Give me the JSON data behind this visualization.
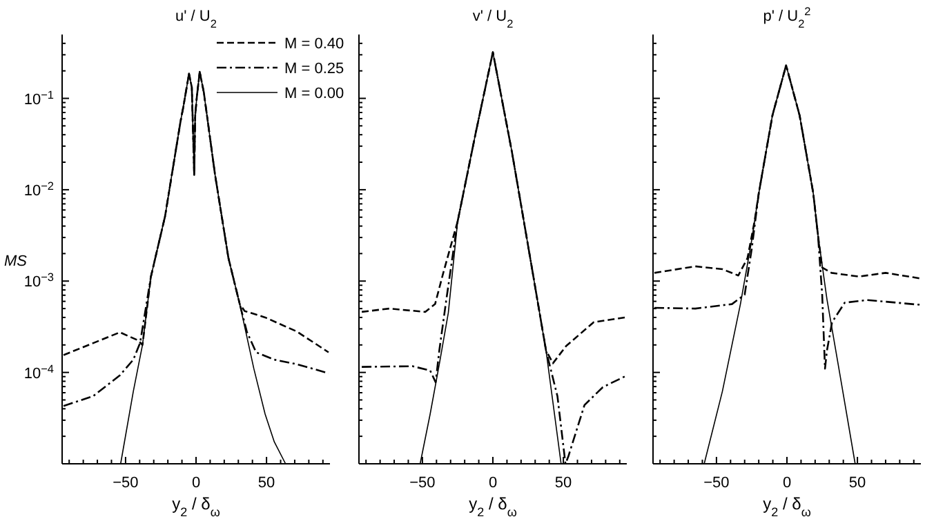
{
  "chart_data": [
    {
      "type": "line",
      "title": "u' / U$_{2}$",
      "xlabel": "y$_{2}$ / δ$_{ω}$",
      "ylabel": "MS",
      "log": "y",
      "legend": "top right",
      "xlim": [
        -95,
        95
      ],
      "ylim": [
        1e-05,
        0.5
      ],
      "xticks": [
        {
          "value": -90,
          "label": null
        },
        {
          "value": -80,
          "label": null
        },
        {
          "value": -70,
          "label": null
        },
        {
          "value": -60,
          "label": null
        },
        -50,
        {
          "value": -40,
          "label": null
        },
        {
          "value": -30,
          "label": null
        },
        {
          "value": -20,
          "label": null
        },
        {
          "value": -10,
          "label": null
        },
        0,
        {
          "value": 10,
          "label": null
        },
        {
          "value": 20,
          "label": null
        },
        {
          "value": 30,
          "label": null
        },
        {
          "value": 40,
          "label": null
        },
        50,
        {
          "value": 60,
          "label": null
        },
        {
          "value": 70,
          "label": null
        },
        {
          "value": 80,
          "label": null
        },
        {
          "value": 90,
          "label": null
        }
      ],
      "yticks": [
        {
          "value": 1e-05,
          "label": null
        },
        {
          "value": 2e-05,
          "label": null
        },
        {
          "value": 3e-05,
          "label": null
        },
        {
          "value": 4e-05,
          "label": null
        },
        {
          "value": 5e-05,
          "label": null
        },
        {
          "value": 6e-05,
          "label": null
        },
        {
          "value": 7e-05,
          "label": null
        },
        {
          "value": 8e-05,
          "label": null
        },
        {
          "value": 9e-05,
          "label": null
        },
        {
          "value": 0.0001,
          "label": "10$^{−4}$"
        },
        {
          "value": 0.0002,
          "label": null
        },
        {
          "value": 0.0003,
          "label": null
        },
        {
          "value": 0.0004,
          "label": null
        },
        {
          "value": 0.0005,
          "label": null
        },
        {
          "value": 0.0006,
          "label": null
        },
        {
          "value": 0.0007,
          "label": null
        },
        {
          "value": 0.0008,
          "label": null
        },
        {
          "value": 0.0009,
          "label": null
        },
        {
          "value": 0.001,
          "label": "10$^{−3}$"
        },
        {
          "value": 0.002,
          "label": null
        },
        {
          "value": 0.003,
          "label": null
        },
        {
          "value": 0.004,
          "label": null
        },
        {
          "value": 0.005,
          "label": null
        },
        {
          "value": 0.006,
          "label": null
        },
        {
          "value": 0.007,
          "label": null
        },
        {
          "value": 0.008,
          "label": null
        },
        {
          "value": 0.009,
          "label": null
        },
        {
          "value": 0.01,
          "label": "10$^{−2}$"
        },
        {
          "value": 0.02,
          "label": null
        },
        {
          "value": 0.03,
          "label": null
        },
        {
          "value": 0.04,
          "label": null
        },
        {
          "value": 0.05,
          "label": null
        },
        {
          "value": 0.06,
          "label": null
        },
        {
          "value": 0.07,
          "label": null
        },
        {
          "value": 0.08,
          "label": null
        },
        {
          "value": 0.09,
          "label": null
        },
        {
          "value": 0.1,
          "label": "10$^{−1}$"
        },
        {
          "value": 0.2,
          "label": null
        },
        {
          "value": 0.3,
          "label": null
        },
        {
          "value": 0.4,
          "label": null
        }
      ],
      "series": [
        {
          "name": "M = 0.40",
          "color": "#000000",
          "line_style": "dashed",
          "x": [
            -94,
            -54,
            -41,
            -38,
            -32,
            -22,
            -11,
            -9,
            -5,
            -3,
            -1.3,
            -0.6,
            0.6,
            2.6,
            5.5,
            13.5,
            23,
            31,
            34.5,
            49,
            71.6,
            94
          ],
          "values": [
            0.000155,
            0.000275,
            0.000224,
            0.0002,
            0.00112,
            0.0051,
            0.056,
            0.081,
            0.186,
            0.132,
            0.0145,
            0.065,
            0.105,
            0.195,
            0.117,
            0.0145,
            0.00178,
            0.00056,
            0.00047,
            0.0004,
            0.00028,
            0.000166
          ]
        },
        {
          "name": "M = 0.25",
          "color": "#000000",
          "line_style": "dashdot",
          "x": [
            -94,
            -73,
            -54,
            -44.5,
            -39.7,
            -32,
            -22,
            -11,
            -9,
            -5,
            -3,
            -1.3,
            -0.6,
            0.6,
            2.6,
            5.5,
            13.5,
            23,
            31,
            36,
            42.6,
            55.5,
            71.6,
            94
          ],
          "values": [
            4.3e-05,
            5.5e-05,
            9.3e-05,
            0.000138,
            0.00021,
            0.00112,
            0.0051,
            0.056,
            0.081,
            0.186,
            0.132,
            0.0145,
            0.065,
            0.105,
            0.195,
            0.117,
            0.0145,
            0.00178,
            0.00056,
            0.00028,
            0.000166,
            0.000138,
            0.000123,
            9.8e-05
          ]
        },
        {
          "name": "M = 0.00",
          "color": "#000000",
          "line_style": "solid",
          "x": [
            -53.5,
            -44.5,
            -38,
            -32,
            -22,
            -11,
            -9,
            -5,
            -3,
            -1.3,
            -0.6,
            0.6,
            2.6,
            5.5,
            13.5,
            23,
            31,
            41,
            49,
            55.5,
            63.5
          ],
          "values": [
            1e-05,
            6.2e-05,
            0.0002,
            0.00112,
            0.0051,
            0.056,
            0.081,
            0.186,
            0.132,
            0.0145,
            0.065,
            0.105,
            0.195,
            0.117,
            0.0145,
            0.00178,
            0.00056,
            0.00011,
            3.5e-05,
            1.74e-05,
            1e-05
          ]
        }
      ]
    },
    {
      "type": "line",
      "title": "v' / U$_{2}$",
      "xlabel": "y$_{2}$ / δ$_{ω}$",
      "log": "y",
      "tick_labels": "x",
      "xlim": [
        -95,
        95
      ],
      "ylim": [
        1e-05,
        0.5
      ],
      "xticks": [
        {
          "value": -90,
          "label": null
        },
        {
          "value": -80,
          "label": null
        },
        {
          "value": -70,
          "label": null
        },
        {
          "value": -60,
          "label": null
        },
        -50,
        {
          "value": -40,
          "label": null
        },
        {
          "value": -30,
          "label": null
        },
        {
          "value": -20,
          "label": null
        },
        {
          "value": -10,
          "label": null
        },
        0,
        {
          "value": 10,
          "label": null
        },
        {
          "value": 20,
          "label": null
        },
        {
          "value": 30,
          "label": null
        },
        {
          "value": 40,
          "label": null
        },
        50,
        {
          "value": 60,
          "label": null
        },
        {
          "value": 70,
          "label": null
        },
        {
          "value": 80,
          "label": null
        },
        {
          "value": 90,
          "label": null
        }
      ],
      "yticks": [
        {
          "value": 1e-05,
          "label": null
        },
        {
          "value": 2e-05,
          "label": null
        },
        {
          "value": 3e-05,
          "label": null
        },
        {
          "value": 4e-05,
          "label": null
        },
        {
          "value": 5e-05,
          "label": null
        },
        {
          "value": 6e-05,
          "label": null
        },
        {
          "value": 7e-05,
          "label": null
        },
        {
          "value": 8e-05,
          "label": null
        },
        {
          "value": 9e-05,
          "label": null
        },
        {
          "value": 0.0001,
          "label": null
        },
        {
          "value": 0.0002,
          "label": null
        },
        {
          "value": 0.0003,
          "label": null
        },
        {
          "value": 0.0004,
          "label": null
        },
        {
          "value": 0.0005,
          "label": null
        },
        {
          "value": 0.0006,
          "label": null
        },
        {
          "value": 0.0007,
          "label": null
        },
        {
          "value": 0.0008,
          "label": null
        },
        {
          "value": 0.0009,
          "label": null
        },
        {
          "value": 0.001,
          "label": null
        },
        {
          "value": 0.002,
          "label": null
        },
        {
          "value": 0.003,
          "label": null
        },
        {
          "value": 0.004,
          "label": null
        },
        {
          "value": 0.005,
          "label": null
        },
        {
          "value": 0.006,
          "label": null
        },
        {
          "value": 0.007,
          "label": null
        },
        {
          "value": 0.008,
          "label": null
        },
        {
          "value": 0.009,
          "label": null
        },
        {
          "value": 0.01,
          "label": null
        },
        {
          "value": 0.02,
          "label": null
        },
        {
          "value": 0.03,
          "label": null
        },
        {
          "value": 0.04,
          "label": null
        },
        {
          "value": 0.05,
          "label": null
        },
        {
          "value": 0.06,
          "label": null
        },
        {
          "value": 0.07,
          "label": null
        },
        {
          "value": 0.08,
          "label": null
        },
        {
          "value": 0.09,
          "label": null
        },
        {
          "value": 0.1,
          "label": null
        },
        {
          "value": 0.2,
          "label": null
        },
        {
          "value": 0.3,
          "label": null
        },
        {
          "value": 0.4,
          "label": null
        }
      ],
      "series": [
        {
          "color": "#000000",
          "line_style": "dashed",
          "x": [
            -93,
            -73.5,
            -48,
            -41,
            -35,
            -25,
            -12.3,
            0,
            13.5,
            26.5,
            37.7,
            42.6,
            52,
            71.6,
            94
          ],
          "values": [
            0.00046,
            0.0005,
            0.00046,
            0.00056,
            0.00126,
            0.0045,
            0.041,
            0.32,
            0.026,
            0.00178,
            0.000174,
            0.000126,
            0.000195,
            0.000355,
            0.0004
          ]
        },
        {
          "color": "#000000",
          "line_style": "dashdot",
          "x": [
            -93,
            -57,
            -44.5,
            -40.6,
            -38,
            -33,
            -25,
            -12.3,
            0,
            13.5,
            26.5,
            37.7,
            45.8,
            51.5,
            53.5,
            65,
            78,
            94
          ],
          "values": [
            0.000115,
            0.000117,
            0.000105,
            7.8e-05,
            0.000174,
            0.00063,
            0.0045,
            0.041,
            0.32,
            0.026,
            0.00178,
            0.000174,
            5.5e-05,
            1e-05,
            1.2e-05,
            4.4e-05,
            6.9e-05,
            9.1e-05
          ]
        },
        {
          "color": "#000000",
          "line_style": "solid",
          "x": [
            -51.6,
            -44.5,
            -38,
            -31.6,
            -25,
            -12.3,
            0,
            13.5,
            26.5,
            37.7,
            48.4
          ],
          "values": [
            1e-05,
            3.5e-05,
            0.000123,
            0.00045,
            0.0045,
            0.041,
            0.32,
            0.026,
            0.00178,
            0.000174,
            1e-05
          ]
        }
      ]
    },
    {
      "type": "line",
      "title": "p' / U$_{2}$$^{2}$",
      "xlabel": "y$_{2}$ / δ$_{ω}$",
      "log": "y",
      "tick_labels": "x",
      "xlim": [
        -95,
        95
      ],
      "ylim": [
        1e-05,
        0.5
      ],
      "xticks": [
        {
          "value": -90,
          "label": null
        },
        {
          "value": -80,
          "label": null
        },
        {
          "value": -70,
          "label": null
        },
        {
          "value": -60,
          "label": null
        },
        -50,
        {
          "value": -40,
          "label": null
        },
        {
          "value": -30,
          "label": null
        },
        {
          "value": -20,
          "label": null
        },
        {
          "value": -10,
          "label": null
        },
        0,
        {
          "value": 10,
          "label": null
        },
        {
          "value": 20,
          "label": null
        },
        {
          "value": 30,
          "label": null
        },
        {
          "value": 40,
          "label": null
        },
        50,
        {
          "value": 60,
          "label": null
        },
        {
          "value": 70,
          "label": null
        },
        {
          "value": 80,
          "label": null
        },
        {
          "value": 90,
          "label": null
        }
      ],
      "yticks": [
        {
          "value": 1e-05,
          "label": null
        },
        {
          "value": 2e-05,
          "label": null
        },
        {
          "value": 3e-05,
          "label": null
        },
        {
          "value": 4e-05,
          "label": null
        },
        {
          "value": 5e-05,
          "label": null
        },
        {
          "value": 6e-05,
          "label": null
        },
        {
          "value": 7e-05,
          "label": null
        },
        {
          "value": 8e-05,
          "label": null
        },
        {
          "value": 9e-05,
          "label": null
        },
        {
          "value": 0.0001,
          "label": null
        },
        {
          "value": 0.0002,
          "label": null
        },
        {
          "value": 0.0003,
          "label": null
        },
        {
          "value": 0.0004,
          "label": null
        },
        {
          "value": 0.0005,
          "label": null
        },
        {
          "value": 0.0006,
          "label": null
        },
        {
          "value": 0.0007,
          "label": null
        },
        {
          "value": 0.0008,
          "label": null
        },
        {
          "value": 0.0009,
          "label": null
        },
        {
          "value": 0.001,
          "label": null
        },
        {
          "value": 0.002,
          "label": null
        },
        {
          "value": 0.003,
          "label": null
        },
        {
          "value": 0.004,
          "label": null
        },
        {
          "value": 0.005,
          "label": null
        },
        {
          "value": 0.006,
          "label": null
        },
        {
          "value": 0.007,
          "label": null
        },
        {
          "value": 0.008,
          "label": null
        },
        {
          "value": 0.009,
          "label": null
        },
        {
          "value": 0.01,
          "label": null
        },
        {
          "value": 0.02,
          "label": null
        },
        {
          "value": 0.03,
          "label": null
        },
        {
          "value": 0.04,
          "label": null
        },
        {
          "value": 0.05,
          "label": null
        },
        {
          "value": 0.06,
          "label": null
        },
        {
          "value": 0.07,
          "label": null
        },
        {
          "value": 0.08,
          "label": null
        },
        {
          "value": 0.09,
          "label": null
        },
        {
          "value": 0.1,
          "label": null
        },
        {
          "value": 0.2,
          "label": null
        },
        {
          "value": 0.3,
          "label": null
        },
        {
          "value": 0.4,
          "label": null
        }
      ],
      "series": [
        {
          "color": "#000000",
          "line_style": "dashed",
          "x": [
            -94,
            -65,
            -45.8,
            -34.5,
            -28,
            -23,
            -20,
            -10.3,
            -0.6,
            9,
            18.7,
            22,
            25,
            31.6,
            51,
            70,
            94.5
          ],
          "values": [
            0.00123,
            0.00145,
            0.00135,
            0.00115,
            0.00178,
            0.0045,
            0.0091,
            0.065,
            0.23,
            0.065,
            0.0091,
            0.0032,
            0.00141,
            0.00123,
            0.00112,
            0.00123,
            0.00107
          ]
        },
        {
          "color": "#000000",
          "line_style": "dashdot",
          "x": [
            -94,
            -65,
            -39,
            -30,
            -25,
            -20,
            -10.3,
            -0.6,
            9,
            18.7,
            22,
            25,
            27,
            28.4,
            32,
            41,
            57,
            94.5
          ],
          "values": [
            0.00051,
            0.0005,
            0.00056,
            0.00071,
            0.00224,
            0.0091,
            0.065,
            0.23,
            0.065,
            0.0091,
            0.0032,
            0.00071,
            0.00011,
            0.000174,
            0.000355,
            0.00058,
            0.00062,
            0.00055
          ]
        },
        {
          "color": "#000000",
          "line_style": "solid",
          "x": [
            -58.7,
            -45.8,
            -33,
            -25,
            -20,
            -10.3,
            -0.6,
            9,
            18.7,
            22,
            28.4,
            38,
            48.4
          ],
          "values": [
            1e-05,
            6.2e-05,
            0.00056,
            0.0028,
            0.0091,
            0.065,
            0.23,
            0.065,
            0.0091,
            0.0032,
            0.00063,
            8.7e-05,
            1e-05
          ]
        }
      ]
    }
  ]
}
